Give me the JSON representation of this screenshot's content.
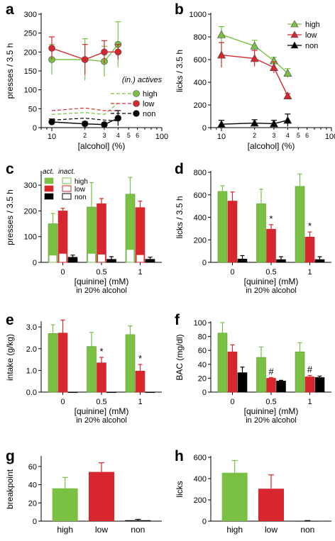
{
  "colors": {
    "high": "#7ac143",
    "low": "#d7262e",
    "non": "#000000"
  },
  "chart_data": [
    {
      "id": "a",
      "panel_label": "a",
      "type": "line",
      "ylabel": "presses / 3.5 h",
      "xlabel": "[alcohol] (%)",
      "xscale": "log",
      "xlim": [
        8,
        100
      ],
      "ylim": [
        0,
        300
      ],
      "yticks": [
        "0",
        "50",
        "100",
        "150",
        "200",
        "250",
        "300"
      ],
      "xtick_labels": [
        "10",
        "2",
        "3",
        "4",
        "5",
        "6",
        "100"
      ],
      "x": [
        10,
        20,
        30,
        40
      ],
      "legend_title": "(in.) actives",
      "series": [
        {
          "name": "high",
          "values": [
            180,
            180,
            175,
            220
          ],
          "err": [
            40,
            55,
            40,
            60
          ]
        },
        {
          "name": "low",
          "values": [
            210,
            180,
            200,
            200
          ],
          "err": [
            30,
            40,
            30,
            20
          ]
        },
        {
          "name": "non",
          "values": [
            15,
            10,
            8,
            25
          ],
          "err": [
            8,
            6,
            5,
            20
          ]
        }
      ],
      "inactive_series": [
        {
          "name": "high",
          "values": [
            35,
            40,
            35,
            65
          ]
        },
        {
          "name": "low",
          "values": [
            45,
            52,
            45,
            45
          ]
        },
        {
          "name": "non",
          "values": [
            20,
            25,
            20,
            18
          ]
        }
      ]
    },
    {
      "id": "b",
      "panel_label": "b",
      "type": "line",
      "ylabel": "licks / 3.5 h",
      "xlabel": "[alcohol] (%)",
      "xscale": "log",
      "xlim": [
        8,
        100
      ],
      "ylim": [
        0,
        1000
      ],
      "yticks": [
        "0",
        "200",
        "400",
        "600",
        "800",
        "1000"
      ],
      "xtick_labels": [
        "10",
        "2",
        "3",
        "4",
        "5",
        "6",
        "100"
      ],
      "x": [
        10,
        20,
        30,
        40
      ],
      "legend": [
        "high",
        "low",
        "non"
      ],
      "series": [
        {
          "name": "high",
          "values": [
            820,
            720,
            590,
            480
          ],
          "err": [
            70,
            50,
            30,
            40
          ]
        },
        {
          "name": "low",
          "values": [
            640,
            610,
            530,
            280
          ],
          "err": [
            110,
            70,
            50,
            20
          ]
        },
        {
          "name": "non",
          "values": [
            30,
            40,
            35,
            65
          ],
          "err": [
            35,
            30,
            30,
            55
          ]
        }
      ]
    },
    {
      "id": "c",
      "panel_label": "c",
      "type": "bar",
      "ylabel": "presses / 3.5 h",
      "xlabel": "[quinine] (mM)",
      "subcaption": "in 20% alcohol",
      "categories": [
        "0",
        "0.5",
        "1"
      ],
      "ylim": [
        0,
        350
      ],
      "yticks": [
        "0",
        "100",
        "200",
        "300"
      ],
      "legend_active": "act.",
      "legend_inactive": "inact.",
      "legend": [
        "high",
        "low",
        "non"
      ],
      "series": [
        {
          "name": "high",
          "values": [
            150,
            215,
            265
          ],
          "err": [
            40,
            95,
            65
          ],
          "inactive": [
            28,
            35,
            50
          ]
        },
        {
          "name": "low",
          "values": [
            200,
            228,
            213
          ],
          "err": [
            10,
            20,
            25
          ],
          "inactive": [
            35,
            32,
            30
          ]
        },
        {
          "name": "non",
          "values": [
            20,
            12,
            12
          ],
          "err": [
            8,
            10,
            8
          ],
          "inactive": [
            0,
            0,
            0
          ]
        }
      ]
    },
    {
      "id": "d",
      "panel_label": "d",
      "type": "bar",
      "ylabel": "licks / 3.5 h",
      "xlabel": "[quinine] (mM)",
      "subcaption": "in 20% alcohol",
      "categories": [
        "0",
        "0.5",
        "1"
      ],
      "ylim": [
        0,
        800
      ],
      "yticks": [
        "0",
        "200",
        "400",
        "600",
        "800"
      ],
      "series": [
        {
          "name": "high",
          "values": [
            630,
            520,
            675
          ],
          "err": [
            50,
            130,
            110
          ]
        },
        {
          "name": "low",
          "values": [
            545,
            295,
            225
          ],
          "err": [
            80,
            40,
            45
          ]
        },
        {
          "name": "non",
          "values": [
            30,
            25,
            25
          ],
          "err": [
            30,
            25,
            25
          ]
        }
      ],
      "annotations": [
        {
          "category": "0.5",
          "text": "*"
        },
        {
          "category": "1",
          "text": "*"
        }
      ]
    },
    {
      "id": "e",
      "panel_label": "e",
      "type": "bar",
      "ylabel": "intake (g/kg)",
      "xlabel": "[quinine] (mM)",
      "subcaption": "in 20% alcohol",
      "categories": [
        "0",
        "0.5",
        "1"
      ],
      "ylim": [
        0,
        3.2
      ],
      "yticks": [
        "0.0",
        "1.0",
        "2.0",
        "3.0"
      ],
      "series": [
        {
          "name": "high",
          "values": [
            2.7,
            2.1,
            2.65
          ],
          "err": [
            0.4,
            0.65,
            0.4
          ]
        },
        {
          "name": "low",
          "values": [
            2.72,
            1.35,
            0.97
          ],
          "err": [
            0.6,
            0.25,
            0.3
          ]
        },
        {
          "name": "non",
          "values": [
            0.0,
            0.0,
            0.0
          ],
          "err": [
            0,
            0,
            0
          ]
        }
      ],
      "annotations": [
        {
          "category": "0.5",
          "text": "*"
        },
        {
          "category": "1",
          "text": "*"
        }
      ]
    },
    {
      "id": "f",
      "panel_label": "f",
      "type": "bar",
      "ylabel": "BAC (mg/dl)",
      "xlabel": "[quinine] (mM)",
      "subcaption": "in 20% alcohol",
      "categories": [
        "0",
        "0.5",
        "1"
      ],
      "ylim": [
        0,
        100
      ],
      "yticks": [
        "0",
        "20",
        "40",
        "60",
        "80",
        "100"
      ],
      "series": [
        {
          "name": "high",
          "values": [
            85,
            50,
            58
          ],
          "err": [
            15,
            15,
            13
          ]
        },
        {
          "name": "low",
          "values": [
            58,
            20,
            22
          ],
          "err": [
            10,
            1,
            2
          ]
        },
        {
          "name": "non",
          "values": [
            28,
            16,
            21
          ],
          "err": [
            8,
            1,
            2
          ]
        }
      ],
      "annotations": [
        {
          "category": "0.5",
          "text": "#"
        },
        {
          "category": "1",
          "text": "#"
        }
      ]
    },
    {
      "id": "g",
      "panel_label": "g",
      "type": "bar",
      "ylabel": "breakpoint",
      "categories": [
        "high",
        "low",
        "non"
      ],
      "ylim": [
        0,
        70
      ],
      "yticks": [
        "0",
        "20",
        "40",
        "60"
      ],
      "values": [
        36,
        54,
        1
      ],
      "err": [
        12,
        10,
        1
      ]
    },
    {
      "id": "h",
      "panel_label": "h",
      "type": "bar",
      "ylabel": "licks",
      "categories": [
        "high",
        "low",
        "non"
      ],
      "ylim": [
        0,
        600
      ],
      "yticks": [
        "0",
        "200",
        "400",
        "600"
      ],
      "values": [
        455,
        305,
        3
      ],
      "err": [
        115,
        130,
        2
      ]
    }
  ]
}
